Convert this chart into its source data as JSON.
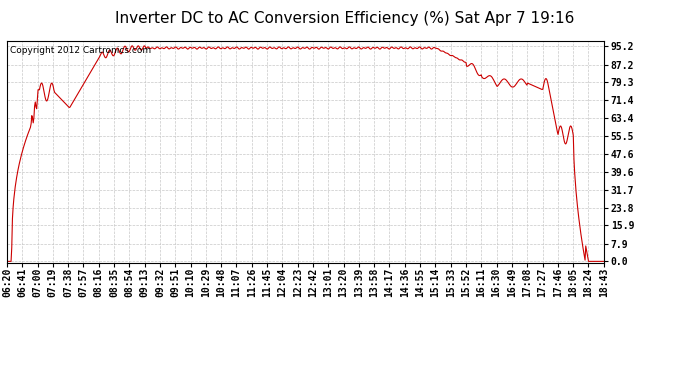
{
  "title": "Inverter DC to AC Conversion Efficiency (%) Sat Apr 7 19:16",
  "copyright": "Copyright 2012 Cartronics.com",
  "line_color": "#cc0000",
  "bg_color": "#ffffff",
  "plot_bg_color": "#ffffff",
  "grid_color": "#c8c8c8",
  "yticks": [
    0.0,
    7.9,
    15.9,
    23.8,
    31.7,
    39.6,
    47.6,
    55.5,
    63.4,
    71.4,
    79.3,
    87.2,
    95.2
  ],
  "xtick_labels": [
    "06:20",
    "06:41",
    "07:00",
    "07:19",
    "07:38",
    "07:57",
    "08:16",
    "08:35",
    "08:54",
    "09:13",
    "09:32",
    "09:51",
    "10:10",
    "10:29",
    "10:48",
    "11:07",
    "11:26",
    "11:45",
    "12:04",
    "12:23",
    "12:42",
    "13:01",
    "13:20",
    "13:39",
    "13:58",
    "14:17",
    "14:36",
    "14:55",
    "15:14",
    "15:33",
    "15:52",
    "16:11",
    "16:30",
    "16:49",
    "17:08",
    "17:27",
    "17:46",
    "18:05",
    "18:24",
    "18:43"
  ],
  "ylim": [
    -0.5,
    97.5
  ],
  "title_fontsize": 11,
  "copyright_fontsize": 6.5,
  "tick_fontsize": 7,
  "line_width": 0.8
}
